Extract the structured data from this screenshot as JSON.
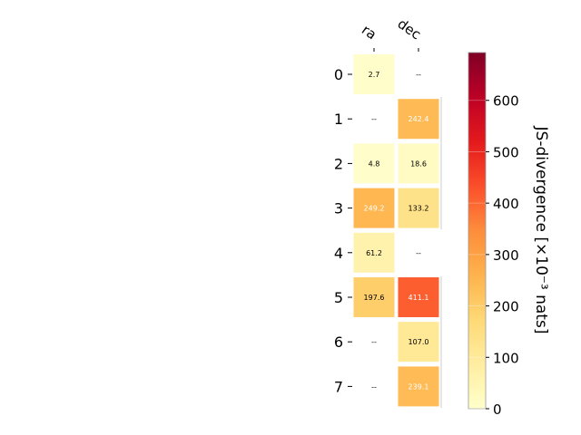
{
  "chart_data": {
    "type": "heatmap",
    "title": "",
    "columns": [
      "ra",
      "dec"
    ],
    "rows": [
      "0",
      "1",
      "2",
      "3",
      "4",
      "5",
      "6",
      "7"
    ],
    "values": [
      [
        2.7,
        null
      ],
      [
        null,
        242.4
      ],
      [
        4.8,
        18.6
      ],
      [
        249.2,
        133.2
      ],
      [
        61.2,
        null
      ],
      [
        197.6,
        411.1
      ],
      [
        null,
        107.0
      ],
      [
        null,
        239.1
      ]
    ],
    "cell_labels": [
      [
        "2.7",
        "--"
      ],
      [
        "--",
        "242.4"
      ],
      [
        "4.8",
        "18.6"
      ],
      [
        "249.2",
        "133.2"
      ],
      [
        "61.2",
        "--"
      ],
      [
        "197.6",
        "411.1"
      ],
      [
        "--",
        "107.0"
      ],
      [
        "--",
        "239.1"
      ]
    ],
    "colorbar": {
      "label": "JS-divergence [×10⁻³ nats]",
      "min": 0,
      "max": 693,
      "ticks": [
        0,
        100,
        200,
        300,
        400,
        500,
        600
      ],
      "colormap": "YlOrRd"
    },
    "grid": false
  }
}
